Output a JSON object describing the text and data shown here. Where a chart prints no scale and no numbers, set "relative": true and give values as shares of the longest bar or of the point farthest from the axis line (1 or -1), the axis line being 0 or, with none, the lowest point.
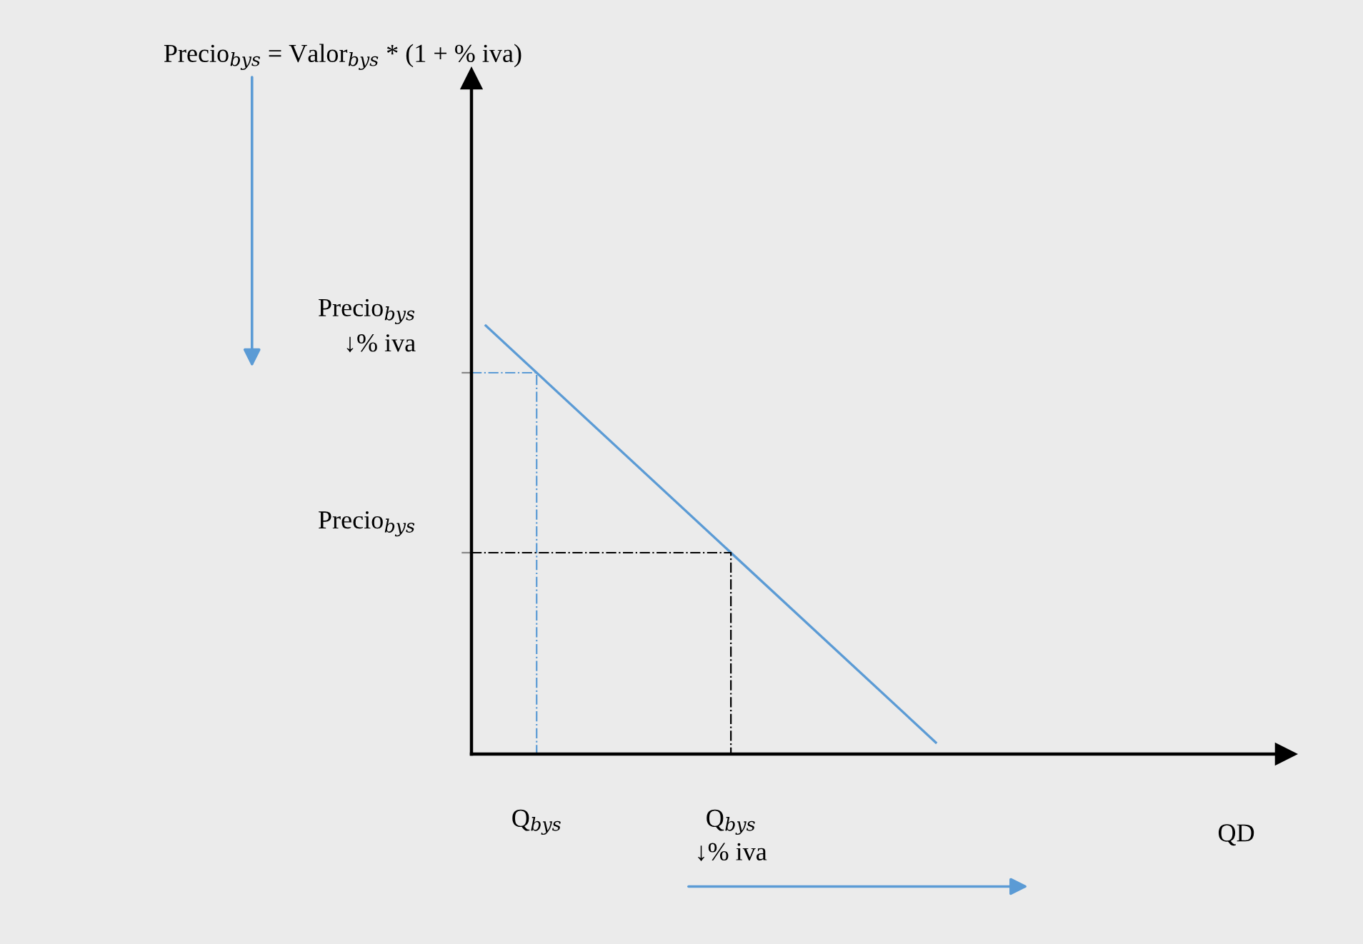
{
  "chart_data": {
    "type": "line",
    "relative": true,
    "xlabel": "QD",
    "categories": [
      null,
      null
    ],
    "series": [
      {
        "color": "#5b9bd5",
        "values": [
          1,
          0.027
        ]
      }
    ],
    "ref_lines": [
      {
        "axis": "y",
        "value": 0.89,
        "label": "Precio$_{bys}$\n↓% iva",
        "color": "#5b9bd5",
        "line_style": "dashdot"
      },
      {
        "axis": "y",
        "value": 0.47,
        "label": "Precio$_{bys}$",
        "color": "#000000",
        "line_style": "dashdot"
      }
    ],
    "annotations": [
      "Q$_{bys}$",
      "Q$_{bys}$\n↓% iva",
      "Precio$_{bys}$ = Valor$_{bys}$ * (1 + % iva)"
    ]
  }
}
